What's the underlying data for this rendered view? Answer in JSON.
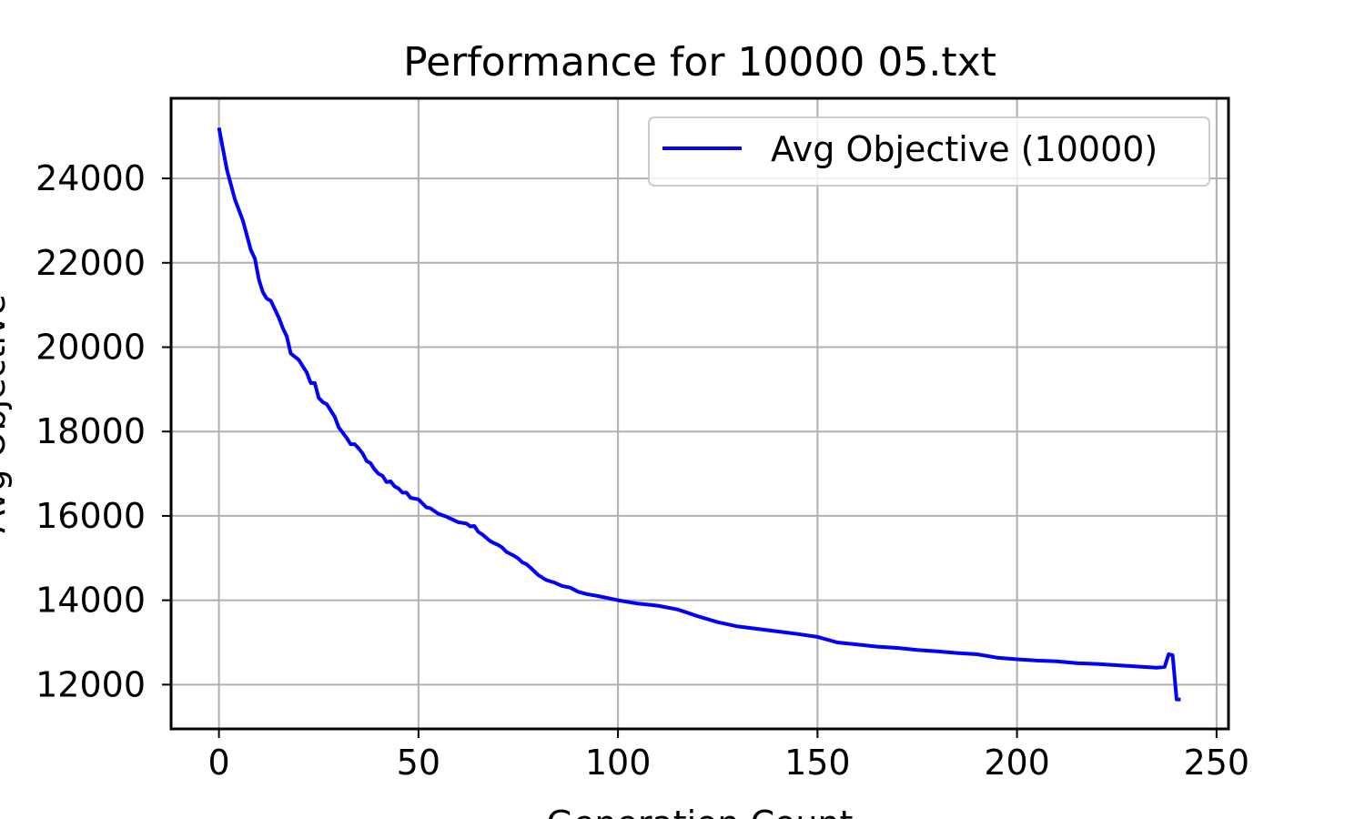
{
  "chart_data": {
    "type": "line",
    "title": "Performance for 10000 05.txt",
    "xlabel": "Generation Count",
    "ylabel": "Avg Objective",
    "xlim": [
      -12,
      253
    ],
    "ylim": [
      10950,
      25900
    ],
    "xticks": [
      0,
      50,
      100,
      150,
      200,
      250
    ],
    "yticks": [
      12000,
      14000,
      16000,
      18000,
      20000,
      22000,
      24000
    ],
    "grid": true,
    "legend_position": "top-right",
    "series": [
      {
        "name": "Avg Objective (10000)",
        "color": "#0000ff",
        "x": [
          0,
          2,
          4,
          6,
          8,
          9,
          10,
          11,
          12,
          13,
          14,
          15,
          16,
          17,
          18,
          20,
          21,
          22,
          23,
          24,
          25,
          26,
          27,
          28,
          29,
          30,
          32,
          33,
          34,
          35,
          36,
          37,
          38,
          39,
          40,
          41,
          42,
          43,
          44,
          45,
          46,
          47,
          48,
          50,
          52,
          53,
          55,
          57,
          60,
          62,
          63,
          64,
          65,
          66,
          67,
          68,
          69,
          70,
          71,
          72,
          73,
          74,
          75,
          76,
          77,
          78,
          80,
          82,
          84,
          86,
          88,
          90,
          92,
          95,
          100,
          105,
          110,
          115,
          120,
          125,
          130,
          135,
          140,
          145,
          150,
          155,
          160,
          165,
          170,
          175,
          180,
          185,
          190,
          195,
          200,
          205,
          210,
          215,
          220,
          225,
          230,
          235,
          237,
          238,
          239,
          240,
          241
        ],
        "y": [
          25200,
          24200,
          23500,
          23000,
          22300,
          22100,
          21600,
          21300,
          21150,
          21100,
          20900,
          20700,
          20450,
          20250,
          19850,
          19700,
          19550,
          19400,
          19150,
          19150,
          18800,
          18700,
          18650,
          18500,
          18350,
          18100,
          17850,
          17700,
          17700,
          17600,
          17480,
          17300,
          17250,
          17100,
          17000,
          16950,
          16800,
          16820,
          16700,
          16650,
          16550,
          16550,
          16430,
          16390,
          16200,
          16180,
          16050,
          15980,
          15850,
          15820,
          15750,
          15760,
          15620,
          15560,
          15480,
          15400,
          15350,
          15310,
          15250,
          15150,
          15100,
          15050,
          14990,
          14900,
          14860,
          14780,
          14600,
          14480,
          14420,
          14340,
          14300,
          14200,
          14150,
          14100,
          14000,
          13920,
          13870,
          13780,
          13620,
          13480,
          13380,
          13320,
          13260,
          13200,
          13130,
          13000,
          12950,
          12900,
          12870,
          12820,
          12790,
          12750,
          12720,
          12640,
          12600,
          12570,
          12550,
          12510,
          12490,
          12460,
          12430,
          12400,
          12420,
          12720,
          12700,
          11650,
          11650
        ]
      }
    ]
  }
}
